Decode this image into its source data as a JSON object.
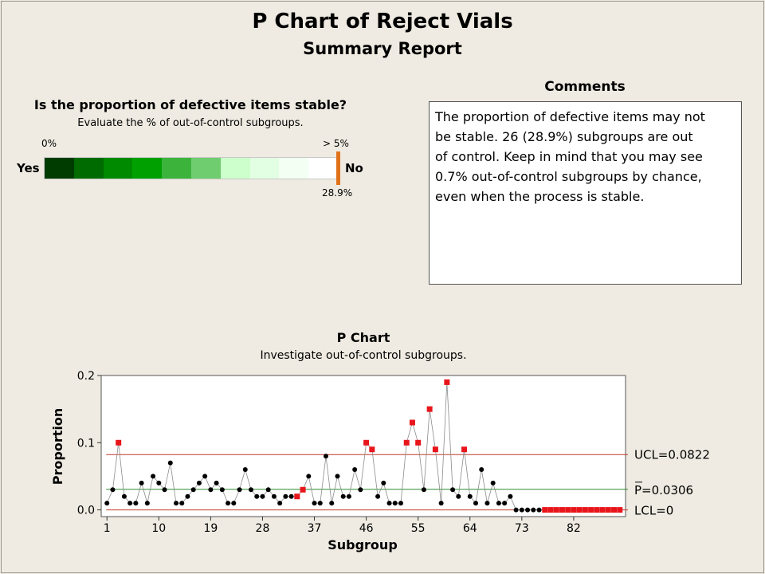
{
  "header": {
    "title": "P Chart of Reject Vials",
    "subtitle": "Summary Report"
  },
  "stability": {
    "question": "Is the proportion of defective items stable?",
    "instruction": "Evaluate the % of out-of-control subgroups.",
    "scale_min_label": "0%",
    "scale_max_label": "> 5%",
    "yes_label": "Yes",
    "no_label": "No",
    "current_value_label": "28.9%",
    "current_value": 28.9,
    "scale_colors": [
      "#003b00",
      "#006b00",
      "#008a00",
      "#00a000",
      "#3cb43c",
      "#6fcd6f",
      "#ccffcc",
      "#e3ffe3",
      "#f2fff2",
      "#ffffff"
    ],
    "marker_color": "#e0731a"
  },
  "comments": {
    "title": "Comments",
    "lines": [
      "The proportion of defective items may not",
      "be stable. 26 (28.9%) subgroups are out",
      "of control. Keep in mind that you may see",
      "0.7% out-of-control subgroups by chance,",
      "even when the process is stable."
    ]
  },
  "chart_data": {
    "type": "scatter",
    "title": "P Chart",
    "subtitle": "Investigate out-of-control subgroups.",
    "xlabel": "Subgroup",
    "ylabel": "Proportion",
    "xlim": [
      0,
      91
    ],
    "ylim": [
      -0.01,
      0.2
    ],
    "x_ticks": [
      1,
      10,
      19,
      28,
      37,
      46,
      55,
      64,
      73,
      82
    ],
    "y_ticks": [
      0.0,
      0.1,
      0.2
    ],
    "y_tick_labels": [
      "0.0",
      "0.1",
      "0.2"
    ],
    "control_limits": {
      "ucl": {
        "value": 0.0822,
        "label": "UCL=0.0822",
        "color": "#c0392b"
      },
      "center": {
        "value": 0.0306,
        "label": "P=0.0306",
        "color": "#2e8b2e"
      },
      "lcl": {
        "value": 0,
        "label": "LCL=0",
        "color": "#c0392b"
      }
    },
    "in_control_color": "#000000",
    "out_of_control_color": "#e8151b",
    "proportions": [
      0.01,
      0.03,
      0.1,
      0.02,
      0.01,
      0.01,
      0.04,
      0.01,
      0.05,
      0.04,
      0.03,
      0.07,
      0.01,
      0.01,
      0.02,
      0.03,
      0.04,
      0.05,
      0.03,
      0.04,
      0.03,
      0.01,
      0.01,
      0.03,
      0.06,
      0.03,
      0.02,
      0.02,
      0.03,
      0.02,
      0.01,
      0.02,
      0.02,
      0.02,
      0.03,
      0.05,
      0.01,
      0.01,
      0.08,
      0.01,
      0.05,
      0.02,
      0.02,
      0.06,
      0.03,
      0.1,
      0.09,
      0.02,
      0.04,
      0.01,
      0.01,
      0.01,
      0.1,
      0.13,
      0.1,
      0.03,
      0.15,
      0.09,
      0.01,
      0.19,
      0.03,
      0.02,
      0.09,
      0.02,
      0.01,
      0.06,
      0.01,
      0.04,
      0.01,
      0.01,
      0.02,
      0,
      0,
      0,
      0,
      0,
      0,
      0,
      0,
      0,
      0,
      0,
      0,
      0,
      0,
      0,
      0,
      0,
      0,
      0
    ],
    "out_of_control_subgroups": [
      3,
      34,
      35,
      46,
      47,
      53,
      54,
      55,
      57,
      58,
      60,
      63,
      77,
      78,
      79,
      80,
      81,
      82,
      83,
      84,
      85,
      86,
      87,
      88,
      89,
      90
    ]
  }
}
